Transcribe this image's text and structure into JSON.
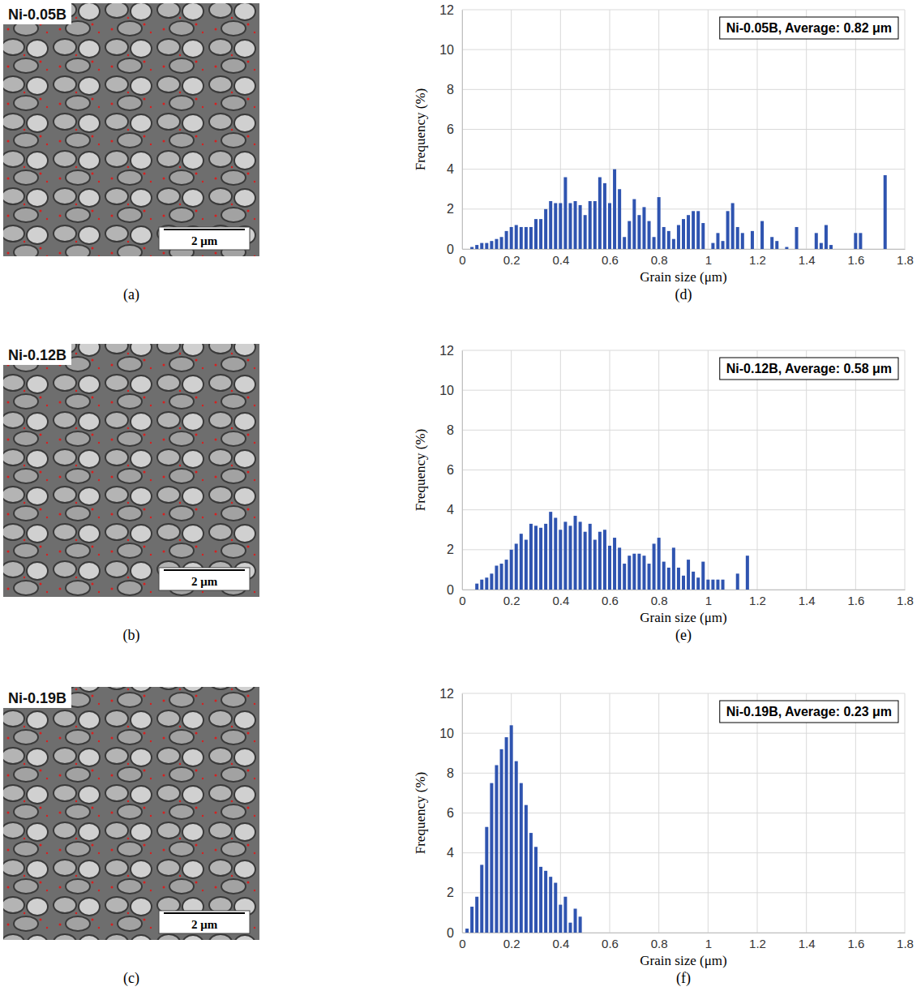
{
  "images": [
    {
      "sample": "Ni-0.05B",
      "scale_bar": "2 μm",
      "panel": "(a)"
    },
    {
      "sample": "Ni-0.12B",
      "scale_bar": "2 μm",
      "panel": "(b)"
    },
    {
      "sample": "Ni-0.19B",
      "scale_bar": "2 μm",
      "panel": "(c)"
    }
  ],
  "chart_data": [
    {
      "type": "bar",
      "panel": "(d)",
      "annotation": "Ni-0.05B, Average: 0.82 μm",
      "x_label": "Grain size (μm)",
      "y_label": "Frequency (%)",
      "color": "#2f54b0",
      "grid": true,
      "xlim": [
        0,
        1.8
      ],
      "xticks": [
        0,
        0.2,
        0.4,
        0.6,
        0.8,
        1,
        1.2,
        1.4,
        1.6,
        1.8
      ],
      "ylim": [
        0,
        12
      ],
      "yticks": [
        0,
        2,
        4,
        6,
        8,
        10,
        12
      ],
      "x": [
        0.04,
        0.06,
        0.08,
        0.1,
        0.12,
        0.14,
        0.16,
        0.18,
        0.2,
        0.22,
        0.24,
        0.26,
        0.28,
        0.3,
        0.32,
        0.34,
        0.36,
        0.38,
        0.4,
        0.42,
        0.44,
        0.46,
        0.48,
        0.5,
        0.52,
        0.54,
        0.56,
        0.58,
        0.6,
        0.62,
        0.64,
        0.66,
        0.68,
        0.7,
        0.72,
        0.74,
        0.76,
        0.78,
        0.8,
        0.82,
        0.84,
        0.86,
        0.88,
        0.9,
        0.92,
        0.94,
        0.96,
        0.98,
        1.02,
        1.04,
        1.06,
        1.08,
        1.1,
        1.12,
        1.14,
        1.18,
        1.22,
        1.26,
        1.28,
        1.32,
        1.36,
        1.44,
        1.46,
        1.48,
        1.5,
        1.6,
        1.62,
        1.72
      ],
      "values": [
        0.1,
        0.2,
        0.3,
        0.3,
        0.4,
        0.5,
        0.6,
        0.9,
        1.1,
        1.2,
        1.1,
        1.1,
        1.1,
        1.5,
        1.5,
        2.0,
        2.4,
        2.3,
        2.3,
        3.6,
        2.3,
        2.4,
        2.2,
        1.7,
        2.4,
        2.4,
        3.6,
        3.3,
        2.3,
        4.0,
        3.0,
        0.6,
        1.4,
        2.5,
        1.7,
        2.1,
        1.4,
        0.6,
        2.6,
        1.1,
        0.9,
        0.5,
        1.2,
        1.5,
        1.7,
        1.9,
        1.9,
        1.3,
        0.3,
        0.8,
        0.4,
        1.9,
        2.3,
        1.1,
        0.8,
        0.9,
        1.4,
        0.6,
        0.4,
        0.1,
        1.1,
        0.8,
        0.3,
        1.2,
        0.2,
        0.8,
        0.8,
        3.7
      ]
    },
    {
      "type": "bar",
      "panel": "(e)",
      "annotation": "Ni-0.12B, Average: 0.58 μm",
      "x_label": "Grain size (μm)",
      "y_label": "Frequency (%)",
      "color": "#2f54b0",
      "grid": true,
      "xlim": [
        0,
        1.8
      ],
      "xticks": [
        0,
        0.2,
        0.4,
        0.6,
        0.8,
        1,
        1.2,
        1.4,
        1.6,
        1.8
      ],
      "ylim": [
        0,
        12
      ],
      "yticks": [
        0,
        2,
        4,
        6,
        8,
        10,
        12
      ],
      "x": [
        0.06,
        0.08,
        0.1,
        0.12,
        0.14,
        0.16,
        0.18,
        0.2,
        0.22,
        0.24,
        0.26,
        0.28,
        0.3,
        0.32,
        0.34,
        0.36,
        0.38,
        0.4,
        0.42,
        0.44,
        0.46,
        0.48,
        0.5,
        0.52,
        0.54,
        0.56,
        0.58,
        0.6,
        0.62,
        0.64,
        0.66,
        0.68,
        0.7,
        0.72,
        0.74,
        0.76,
        0.78,
        0.8,
        0.82,
        0.84,
        0.86,
        0.88,
        0.9,
        0.92,
        0.94,
        0.96,
        0.98,
        1.0,
        1.02,
        1.04,
        1.06,
        1.12,
        1.16
      ],
      "values": [
        0.3,
        0.5,
        0.6,
        0.8,
        1.2,
        1.3,
        1.5,
        2.0,
        2.3,
        2.8,
        2.5,
        3.3,
        3.2,
        3.1,
        3.3,
        3.9,
        3.6,
        3.0,
        3.4,
        3.2,
        3.7,
        3.4,
        2.9,
        3.3,
        2.5,
        2.9,
        3.0,
        2.2,
        2.6,
        2.1,
        1.3,
        1.7,
        1.8,
        1.8,
        1.7,
        1.3,
        2.3,
        2.6,
        1.4,
        1.1,
        2.1,
        1.1,
        0.7,
        1.5,
        0.9,
        0.6,
        1.4,
        0.5,
        0.5,
        0.5,
        0.5,
        0.8,
        1.7
      ]
    },
    {
      "type": "bar",
      "panel": "(f)",
      "annotation": "Ni-0.19B, Average: 0.23 μm",
      "x_label": "Grain size (μm)",
      "y_label": "Frequency (%)",
      "color": "#2f54b0",
      "grid": true,
      "xlim": [
        0,
        1.8
      ],
      "xticks": [
        0,
        0.2,
        0.4,
        0.6,
        0.8,
        1,
        1.2,
        1.4,
        1.6,
        1.8
      ],
      "ylim": [
        0,
        12
      ],
      "yticks": [
        0,
        2,
        4,
        6,
        8,
        10,
        12
      ],
      "x": [
        0.02,
        0.04,
        0.06,
        0.08,
        0.1,
        0.12,
        0.14,
        0.16,
        0.18,
        0.2,
        0.22,
        0.24,
        0.26,
        0.28,
        0.3,
        0.32,
        0.34,
        0.36,
        0.38,
        0.4,
        0.42,
        0.44,
        0.46,
        0.48
      ],
      "values": [
        0.2,
        1.3,
        1.8,
        3.4,
        5.3,
        7.5,
        8.4,
        9.2,
        9.8,
        10.4,
        8.6,
        7.5,
        6.4,
        5.0,
        4.3,
        3.3,
        3.1,
        2.8,
        2.5,
        1.4,
        1.8,
        0.5,
        1.2,
        0.8
      ]
    }
  ]
}
